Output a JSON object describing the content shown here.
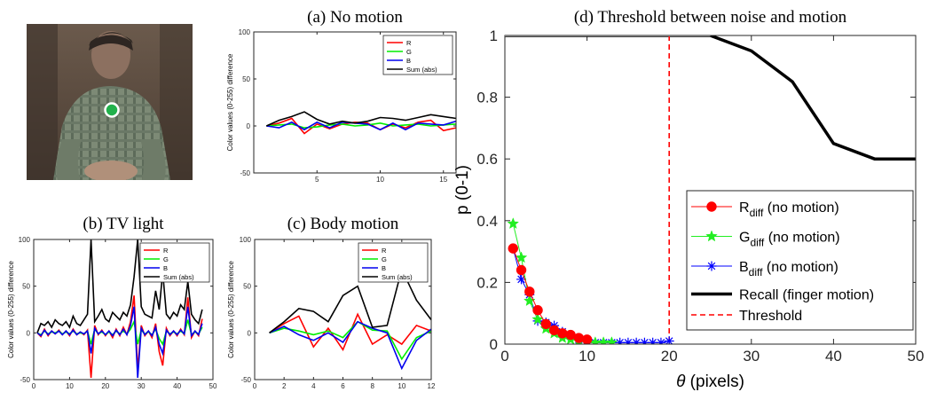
{
  "photo": {
    "marker_color": "#22b14c"
  },
  "chart_data": [
    {
      "id": "a",
      "type": "line",
      "title": "(a) No motion",
      "xlabel": "",
      "ylabel": "Color values (0-255) difference",
      "xlim": [
        0,
        16
      ],
      "ylim": [
        -50,
        100
      ],
      "xticks": [
        5,
        10,
        15
      ],
      "yticks": [
        -50,
        0,
        50,
        100
      ],
      "grid": false,
      "legend_position": "top-right",
      "x": [
        1,
        2,
        3,
        4,
        5,
        6,
        7,
        8,
        9,
        10,
        11,
        12,
        13,
        14,
        15,
        16
      ],
      "series": [
        {
          "name": "R",
          "color": "#ff0000",
          "values": [
            0,
            3,
            8,
            -8,
            2,
            -3,
            2,
            4,
            3,
            -4,
            2,
            -2,
            4,
            6,
            -5,
            -2
          ]
        },
        {
          "name": "G",
          "color": "#00ee00",
          "values": [
            0,
            1,
            2,
            -2,
            -1,
            1,
            2,
            0,
            1,
            3,
            0,
            1,
            2,
            0,
            1,
            2
          ]
        },
        {
          "name": "B",
          "color": "#0000ee",
          "values": [
            0,
            -2,
            4,
            -4,
            4,
            -2,
            4,
            3,
            2,
            -4,
            3,
            -4,
            3,
            2,
            1,
            5
          ]
        },
        {
          "name": "Sum (abs)",
          "color": "#000000",
          "values": [
            0,
            6,
            10,
            15,
            7,
            2,
            5,
            3,
            5,
            9,
            8,
            6,
            9,
            12,
            10,
            8
          ]
        }
      ]
    },
    {
      "id": "b",
      "type": "line",
      "title": "(b) TV light",
      "xlabel": "",
      "ylabel": "Color values (0-255) difference",
      "xlim": [
        0,
        50
      ],
      "ylim": [
        -50,
        100
      ],
      "xticks": [
        0,
        10,
        20,
        30,
        40,
        50
      ],
      "yticks": [
        -50,
        0,
        50,
        100
      ],
      "grid": false,
      "legend_position": "top-right",
      "x": [
        1,
        2,
        3,
        4,
        5,
        6,
        7,
        8,
        9,
        10,
        11,
        12,
        13,
        14,
        15,
        16,
        17,
        18,
        19,
        20,
        21,
        22,
        23,
        24,
        25,
        26,
        27,
        28,
        29,
        30,
        31,
        32,
        33,
        34,
        35,
        36,
        37,
        38,
        39,
        40,
        41,
        42,
        43,
        44,
        45,
        46,
        47
      ],
      "series": [
        {
          "name": "R",
          "color": "#ff0000",
          "values": [
            0,
            -4,
            4,
            -3,
            2,
            -1,
            3,
            -2,
            2,
            -3,
            4,
            -2,
            1,
            -2,
            3,
            -48,
            8,
            -2,
            3,
            -3,
            2,
            -5,
            4,
            -3,
            6,
            -2,
            12,
            40,
            -40,
            8,
            -3,
            2,
            -5,
            10,
            -20,
            -35,
            5,
            -3,
            2,
            -3,
            4,
            -2,
            38,
            -5,
            2,
            -3,
            15
          ]
        },
        {
          "name": "G",
          "color": "#00ee00",
          "values": [
            0,
            -2,
            2,
            -1,
            1,
            0,
            2,
            -1,
            1,
            -1,
            2,
            -1,
            0,
            -1,
            2,
            -12,
            4,
            -1,
            1,
            -2,
            1,
            -2,
            2,
            -1,
            2,
            -1,
            4,
            12,
            -12,
            3,
            -1,
            1,
            -2,
            4,
            -6,
            -12,
            2,
            -1,
            1,
            -1,
            2,
            -1,
            14,
            -2,
            1,
            -1,
            6
          ]
        },
        {
          "name": "B",
          "color": "#0000ee",
          "values": [
            0,
            -3,
            3,
            -2,
            2,
            -1,
            2,
            -2,
            2,
            -2,
            3,
            -2,
            1,
            -1,
            2,
            -22,
            5,
            -1,
            2,
            -2,
            2,
            -3,
            3,
            -2,
            4,
            -2,
            8,
            28,
            -48,
            5,
            -2,
            2,
            -3,
            6,
            -12,
            -22,
            3,
            -2,
            2,
            -2,
            3,
            -1,
            28,
            -3,
            2,
            -2,
            10
          ]
        },
        {
          "name": "Sum (abs)",
          "color": "#000000",
          "values": [
            0,
            10,
            8,
            12,
            6,
            14,
            10,
            8,
            12,
            6,
            18,
            10,
            8,
            14,
            20,
            100,
            12,
            18,
            25,
            15,
            12,
            22,
            18,
            14,
            22,
            18,
            30,
            60,
            100,
            28,
            20,
            18,
            16,
            45,
            25,
            65,
            20,
            15,
            22,
            18,
            30,
            25,
            55,
            20,
            14,
            10,
            25
          ]
        }
      ]
    },
    {
      "id": "c",
      "type": "line",
      "title": "(c) Body motion",
      "xlabel": "",
      "ylabel": "Color values (0-255) difference",
      "xlim": [
        0,
        12
      ],
      "ylim": [
        -50,
        100
      ],
      "xticks": [
        0,
        2,
        4,
        6,
        8,
        10,
        12
      ],
      "yticks": [
        -50,
        0,
        50,
        100
      ],
      "grid": false,
      "legend_position": "top-right",
      "x": [
        1,
        2,
        3,
        4,
        5,
        6,
        7,
        8,
        9,
        10,
        11,
        12
      ],
      "series": [
        {
          "name": "R",
          "color": "#ff0000",
          "values": [
            0,
            10,
            18,
            -15,
            5,
            -18,
            20,
            -12,
            -2,
            -12,
            8,
            2
          ]
        },
        {
          "name": "G",
          "color": "#00ee00",
          "values": [
            0,
            5,
            2,
            -2,
            2,
            -5,
            12,
            3,
            2,
            -28,
            -5,
            2
          ]
        },
        {
          "name": "B",
          "color": "#0000ee",
          "values": [
            0,
            7,
            -2,
            -8,
            0,
            -10,
            12,
            5,
            0,
            -38,
            -8,
            4
          ]
        },
        {
          "name": "Sum (abs)",
          "color": "#000000",
          "values": [
            0,
            12,
            26,
            23,
            12,
            40,
            50,
            6,
            8,
            68,
            35,
            14
          ]
        }
      ]
    },
    {
      "id": "d",
      "type": "line",
      "title": "(d) Threshold between noise and motion",
      "xlabel": "θ (pixels)",
      "ylabel": "p (0-1)",
      "xlim": [
        0,
        50
      ],
      "ylim": [
        0,
        1
      ],
      "xticks": [
        0,
        10,
        20,
        30,
        40,
        50
      ],
      "yticks": [
        0,
        0.2,
        0.4,
        0.6,
        0.8,
        1
      ],
      "grid": false,
      "legend_position": "bottom-right",
      "threshold_x": 20,
      "series": [
        {
          "name": "R",
          "legend_sub": "diff",
          "legend_suffix": "(no motion)",
          "color": "#ff0000",
          "marker": "circle",
          "x": [
            1,
            2,
            3,
            4,
            5,
            6,
            7,
            8,
            9,
            10
          ],
          "values": [
            0.31,
            0.24,
            0.17,
            0.11,
            0.065,
            0.045,
            0.035,
            0.03,
            0.02,
            0.015
          ]
        },
        {
          "name": "G",
          "legend_sub": "diff",
          "legend_suffix": "(no motion)",
          "color": "#22ee22",
          "marker": "star",
          "x": [
            1,
            2,
            3,
            4,
            5,
            6,
            7,
            8,
            9,
            10,
            11,
            12,
            13
          ],
          "values": [
            0.39,
            0.28,
            0.14,
            0.08,
            0.05,
            0.035,
            0.02,
            0.015,
            0.01,
            0.005,
            0.005,
            0.005,
            0.005
          ]
        },
        {
          "name": "B",
          "legend_sub": "diff",
          "legend_suffix": "(no motion)",
          "color": "#0000ff",
          "marker": "asterisk",
          "x": [
            1,
            2,
            3,
            4,
            5,
            6,
            7,
            8,
            9,
            10,
            11,
            12,
            13,
            14,
            15,
            16,
            17,
            18,
            19,
            20
          ],
          "values": [
            0.31,
            0.21,
            0.16,
            0.075,
            0.07,
            0.06,
            0.04,
            0.025,
            0.015,
            0.01,
            0.005,
            0.005,
            0.005,
            0.005,
            0.005,
            0.005,
            0.005,
            0.005,
            0.005,
            0.01
          ]
        },
        {
          "name": "Recall (finger motion)",
          "color": "#000000",
          "marker": "none",
          "x": [
            0,
            5,
            10,
            15,
            20,
            25,
            30,
            35,
            40,
            45,
            50
          ],
          "values": [
            1,
            1,
            1,
            1,
            1,
            1,
            0.95,
            0.85,
            0.65,
            0.6,
            0.6
          ]
        },
        {
          "name": "Threshold",
          "color": "#ff0000",
          "marker": "none",
          "dashed": true
        }
      ]
    }
  ]
}
